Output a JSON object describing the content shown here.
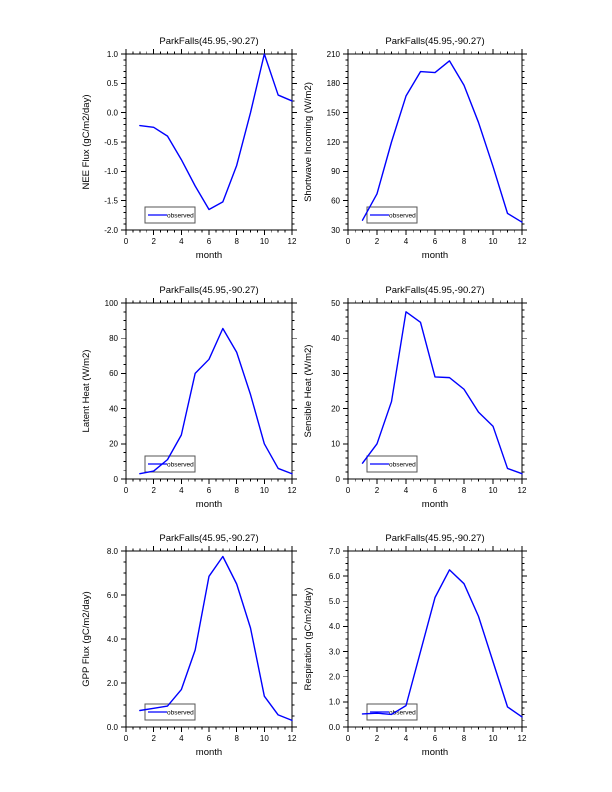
{
  "page": {
    "background": "#ffffff",
    "title": "ParkFalls flux diagnostics figure"
  },
  "legend": {
    "label": "observed"
  },
  "style_colors": {
    "series_line": "#0000ff",
    "axis": "#000000",
    "legend_border": "#555555"
  },
  "chart_data": [
    {
      "id": "nee-flux",
      "type": "line",
      "title": "ParkFalls(45.95,-90.27)",
      "xlabel": "month",
      "ylabel": "NEE Flux (gC/m2/day)",
      "xlim": [
        0,
        12
      ],
      "xticks": [
        0,
        2,
        4,
        6,
        8,
        10,
        12
      ],
      "x_minor_step": 0.5,
      "ylim": [
        -2.0,
        1.0
      ],
      "ytick_values": [
        1.0,
        0.5,
        0.0,
        -0.5,
        -1.0,
        -1.5,
        -2.0
      ],
      "ytick_labels": [
        "1.0",
        "0.5",
        "0.0",
        "-0.5",
        "-1.0",
        "-1.5",
        "-2.0"
      ],
      "y_minor_per_interval": 4,
      "x": [
        1,
        2,
        3,
        4,
        5,
        6,
        7,
        8,
        9,
        10,
        11,
        12
      ],
      "series": [
        {
          "name": "observed",
          "values": [
            -0.22,
            -0.25,
            -0.4,
            -0.8,
            -1.25,
            -1.65,
            -1.52,
            -0.9,
            0.0,
            1.0,
            0.3,
            0.2
          ]
        }
      ],
      "legend_position": "lower-left",
      "grid": false
    },
    {
      "id": "shortwave-incoming",
      "type": "line",
      "title": "ParkFalls(45.95,-90.27)",
      "xlabel": "month",
      "ylabel": "Shortwave Incoming (W/m2)",
      "xlim": [
        0,
        12
      ],
      "xticks": [
        0,
        2,
        4,
        6,
        8,
        10,
        12
      ],
      "x_minor_step": 0.5,
      "ylim": [
        30,
        210
      ],
      "ytick_values": [
        210,
        180,
        150,
        120,
        90,
        60,
        30
      ],
      "ytick_labels": [
        "210",
        "180",
        "150",
        "120",
        "90",
        "60",
        "30"
      ],
      "y_minor_per_interval": 4,
      "x": [
        1,
        2,
        3,
        4,
        5,
        6,
        7,
        8,
        9,
        10,
        11,
        12
      ],
      "series": [
        {
          "name": "observed",
          "values": [
            40,
            67,
            120,
            167,
            192,
            191,
            203,
            178,
            140,
            95,
            47,
            38
          ]
        }
      ],
      "legend_position": "lower-left",
      "grid": false
    },
    {
      "id": "latent-heat",
      "type": "line",
      "title": "ParkFalls(45.95,-90.27)",
      "xlabel": "month",
      "ylabel": "Latent Heat (W/m2)",
      "xlim": [
        0,
        12
      ],
      "xticks": [
        0,
        2,
        4,
        6,
        8,
        10,
        12
      ],
      "x_minor_step": 0.5,
      "ylim": [
        0,
        100
      ],
      "ytick_values": [
        100,
        80,
        60,
        40,
        20,
        0
      ],
      "ytick_labels": [
        "100",
        "80",
        "60",
        "40",
        "20",
        "0"
      ],
      "y_minor_per_interval": 3,
      "x": [
        1,
        2,
        3,
        4,
        5,
        6,
        7,
        8,
        9,
        10,
        11,
        12
      ],
      "series": [
        {
          "name": "observed",
          "values": [
            3,
            4.5,
            11,
            25,
            60,
            68,
            85.5,
            72,
            48,
            20,
            6,
            3
          ]
        }
      ],
      "legend_position": "lower-left",
      "grid": false
    },
    {
      "id": "sensible-heat",
      "type": "line",
      "title": "ParkFalls(45.95,-90.27)",
      "xlabel": "month",
      "ylabel": "Sensible Heat (W/m2)",
      "xlim": [
        0,
        12
      ],
      "xticks": [
        0,
        2,
        4,
        6,
        8,
        10,
        12
      ],
      "x_minor_step": 0.5,
      "ylim": [
        0,
        50
      ],
      "ytick_values": [
        50,
        40,
        30,
        20,
        10,
        0
      ],
      "ytick_labels": [
        "50",
        "40",
        "30",
        "20",
        "10",
        "0"
      ],
      "y_minor_per_interval": 4,
      "x": [
        1,
        2,
        3,
        4,
        5,
        6,
        7,
        8,
        9,
        10,
        11,
        12
      ],
      "series": [
        {
          "name": "observed",
          "values": [
            4.5,
            10,
            22,
            47.5,
            44.5,
            29,
            28.8,
            25.5,
            19,
            15,
            3,
            1.5
          ]
        }
      ],
      "legend_position": "lower-left",
      "grid": false
    },
    {
      "id": "gpp-flux",
      "type": "line",
      "title": "ParkFalls(45.95,-90.27)",
      "xlabel": "month",
      "ylabel": "GPP Flux (gC/m2/day)",
      "xlim": [
        0,
        12
      ],
      "xticks": [
        0,
        2,
        4,
        6,
        8,
        10,
        12
      ],
      "x_minor_step": 0.5,
      "ylim": [
        0,
        8.0
      ],
      "ytick_values": [
        8.0,
        6.0,
        4.0,
        2.0,
        0.0
      ],
      "ytick_labels": [
        "8.0",
        "6.0",
        "4.0",
        "2.0",
        "0.0"
      ],
      "y_minor_per_interval": 3,
      "x": [
        1,
        2,
        3,
        4,
        5,
        6,
        7,
        8,
        9,
        10,
        11,
        12
      ],
      "series": [
        {
          "name": "observed",
          "values": [
            0.75,
            0.85,
            0.95,
            1.7,
            3.5,
            6.85,
            7.75,
            6.5,
            4.5,
            1.4,
            0.55,
            0.3
          ]
        }
      ],
      "legend_position": "lower-left",
      "grid": false
    },
    {
      "id": "respiration",
      "type": "line",
      "title": "ParkFalls(45.95,-90.27)",
      "xlabel": "month",
      "ylabel": "Respiration (gC/m2/day)",
      "xlim": [
        0,
        12
      ],
      "xticks": [
        0,
        2,
        4,
        6,
        8,
        10,
        12
      ],
      "x_minor_step": 0.5,
      "ylim": [
        0,
        7.0
      ],
      "ytick_values": [
        7.0,
        6.0,
        5.0,
        4.0,
        3.0,
        2.0,
        1.0,
        0.0
      ],
      "ytick_labels": [
        "7.0",
        "6.0",
        "5.0",
        "4.0",
        "3.0",
        "2.0",
        "1.0",
        "0.0"
      ],
      "y_minor_per_interval": 3,
      "x": [
        1,
        2,
        3,
        4,
        5,
        6,
        7,
        8,
        9,
        10,
        11,
        12
      ],
      "series": [
        {
          "name": "observed",
          "values": [
            0.52,
            0.55,
            0.5,
            0.85,
            3.0,
            5.15,
            6.25,
            5.7,
            4.4,
            2.6,
            0.8,
            0.4
          ]
        }
      ],
      "legend_position": "lower-left",
      "grid": false
    }
  ]
}
